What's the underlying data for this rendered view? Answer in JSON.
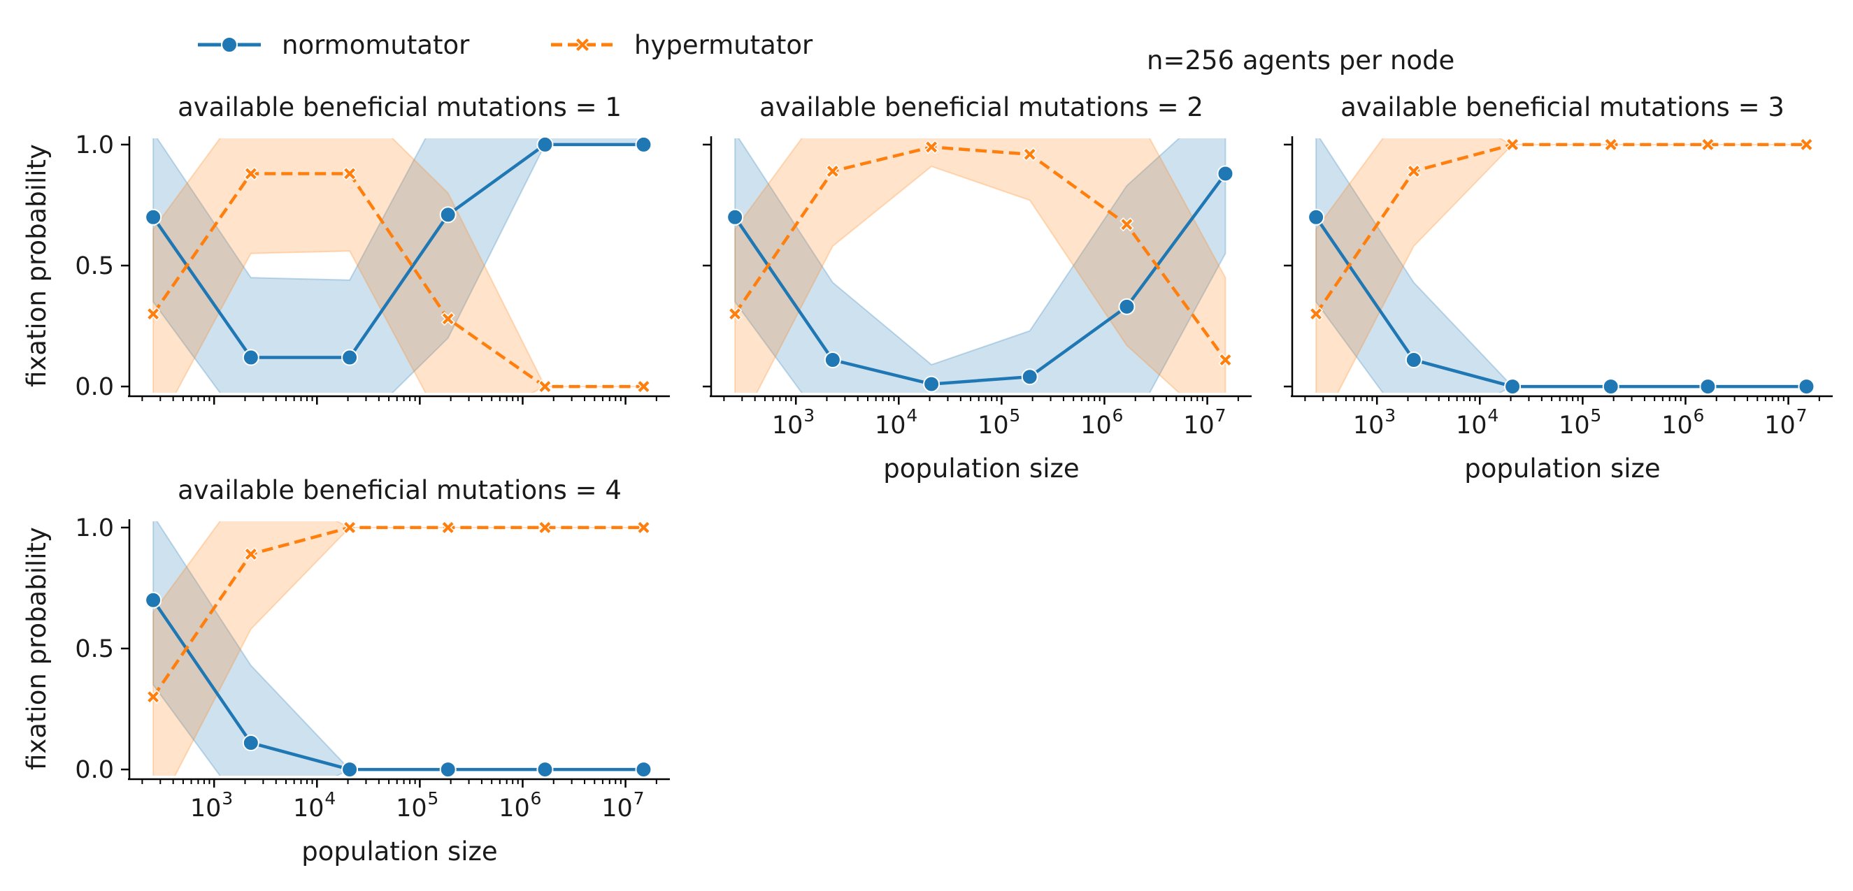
{
  "figure_title": "n=256 agents per node",
  "legend": [
    {
      "label": "normomutator",
      "color": "#1f77b4",
      "marker": "circle",
      "dash": "solid"
    },
    {
      "label": "hypermutator",
      "color": "#ff7f0e",
      "marker": "x",
      "dash": "dashed"
    }
  ],
  "chart_data": [
    {
      "type": "line",
      "title": "available beneficial mutations = 1",
      "xlabel": "",
      "ylabel": "fixation probability",
      "xscale": "log",
      "xlim": [
        150,
        27000000
      ],
      "ylim": [
        -0.02,
        1.02
      ],
      "x": [
        256,
        2280,
        20800,
        188000,
        1650000,
        15000000
      ],
      "xticks": [
        1000,
        10000,
        100000,
        1000000,
        10000000
      ],
      "xtick_labels": [],
      "yticks": [
        0.0,
        0.5,
        1.0
      ],
      "ytick_labels": [
        "0.0",
        "0.5",
        "1.0"
      ],
      "series": [
        {
          "name": "normomutator",
          "values": [
            0.7,
            0.12,
            0.12,
            0.71,
            1.0,
            1.0
          ],
          "ci_low": [
            0.35,
            -0.2,
            -0.2,
            0.2,
            1.0,
            1.0
          ],
          "ci_high": [
            1.05,
            0.45,
            0.44,
            1.2,
            1.2,
            1.2
          ]
        },
        {
          "name": "hypermutator",
          "values": [
            0.3,
            0.88,
            0.88,
            0.28,
            0.0,
            0.0
          ],
          "ci_low": [
            -0.2,
            0.55,
            0.56,
            -0.2,
            0.0,
            0.0
          ],
          "ci_high": [
            0.65,
            1.2,
            1.2,
            0.8,
            0.0,
            0.0
          ]
        }
      ]
    },
    {
      "type": "line",
      "title": "available beneficial mutations = 2",
      "xlabel": "population size",
      "ylabel": "",
      "xscale": "log",
      "xlim": [
        150,
        27000000
      ],
      "ylim": [
        -0.02,
        1.02
      ],
      "x": [
        256,
        2280,
        20800,
        188000,
        1650000,
        15000000
      ],
      "xticks": [
        1000,
        10000,
        100000,
        1000000,
        10000000
      ],
      "xtick_labels": [
        "10^3",
        "10^4",
        "10^5",
        "10^6",
        "10^7"
      ],
      "yticks": [
        0.0,
        0.5,
        1.0
      ],
      "ytick_labels": [],
      "series": [
        {
          "name": "normomutator",
          "values": [
            0.7,
            0.11,
            0.01,
            0.04,
            0.33,
            0.88
          ],
          "ci_low": [
            0.35,
            -0.2,
            -0.2,
            -0.2,
            -0.2,
            0.55
          ],
          "ci_high": [
            1.05,
            0.43,
            0.09,
            0.23,
            0.83,
            1.2
          ]
        },
        {
          "name": "hypermutator",
          "values": [
            0.3,
            0.89,
            0.99,
            0.96,
            0.67,
            0.11
          ],
          "ci_low": [
            -0.2,
            0.58,
            0.91,
            0.77,
            0.17,
            -0.2
          ],
          "ci_high": [
            0.65,
            1.2,
            1.2,
            1.2,
            1.2,
            0.45
          ]
        }
      ]
    },
    {
      "type": "line",
      "title": "available beneficial mutations = 3",
      "xlabel": "population size",
      "ylabel": "",
      "xscale": "log",
      "xlim": [
        150,
        27000000
      ],
      "ylim": [
        -0.02,
        1.02
      ],
      "x": [
        256,
        2280,
        20800,
        188000,
        1650000,
        15000000
      ],
      "xticks": [
        1000,
        10000,
        100000,
        1000000,
        10000000
      ],
      "xtick_labels": [
        "10^3",
        "10^4",
        "10^5",
        "10^6",
        "10^7"
      ],
      "yticks": [
        0.0,
        0.5,
        1.0
      ],
      "ytick_labels": [],
      "series": [
        {
          "name": "normomutator",
          "values": [
            0.7,
            0.11,
            0.0,
            0.0,
            0.0,
            0.0
          ],
          "ci_low": [
            0.35,
            -0.2,
            0.0,
            0.0,
            0.0,
            0.0
          ],
          "ci_high": [
            1.05,
            0.43,
            0.0,
            0.0,
            0.0,
            0.0
          ]
        },
        {
          "name": "hypermutator",
          "values": [
            0.3,
            0.89,
            1.0,
            1.0,
            1.0,
            1.0
          ],
          "ci_low": [
            -0.2,
            0.58,
            1.0,
            1.0,
            1.0,
            1.0
          ],
          "ci_high": [
            0.65,
            1.2,
            1.0,
            1.0,
            1.0,
            1.0
          ]
        }
      ]
    },
    {
      "type": "line",
      "title": "available beneficial mutations = 4",
      "xlabel": "population size",
      "ylabel": "fixation probability",
      "xscale": "log",
      "xlim": [
        150,
        27000000
      ],
      "ylim": [
        -0.02,
        1.02
      ],
      "x": [
        256,
        2280,
        20800,
        188000,
        1650000,
        15000000
      ],
      "xticks": [
        1000,
        10000,
        100000,
        1000000,
        10000000
      ],
      "xtick_labels": [
        "10^3",
        "10^4",
        "10^5",
        "10^6",
        "10^7"
      ],
      "yticks": [
        0.0,
        0.5,
        1.0
      ],
      "ytick_labels": [
        "0.0",
        "0.5",
        "1.0"
      ],
      "series": [
        {
          "name": "normomutator",
          "values": [
            0.7,
            0.11,
            0.0,
            0.0,
            0.0,
            0.0
          ],
          "ci_low": [
            0.35,
            -0.2,
            0.0,
            0.0,
            0.0,
            0.0
          ],
          "ci_high": [
            1.05,
            0.43,
            0.0,
            0.0,
            0.0,
            0.0
          ]
        },
        {
          "name": "hypermutator",
          "values": [
            0.3,
            0.89,
            1.0,
            1.0,
            1.0,
            1.0
          ],
          "ci_low": [
            -0.2,
            0.58,
            1.0,
            1.0,
            1.0,
            1.0
          ],
          "ci_high": [
            0.65,
            1.2,
            1.0,
            1.0,
            1.0,
            1.0
          ]
        }
      ]
    }
  ]
}
